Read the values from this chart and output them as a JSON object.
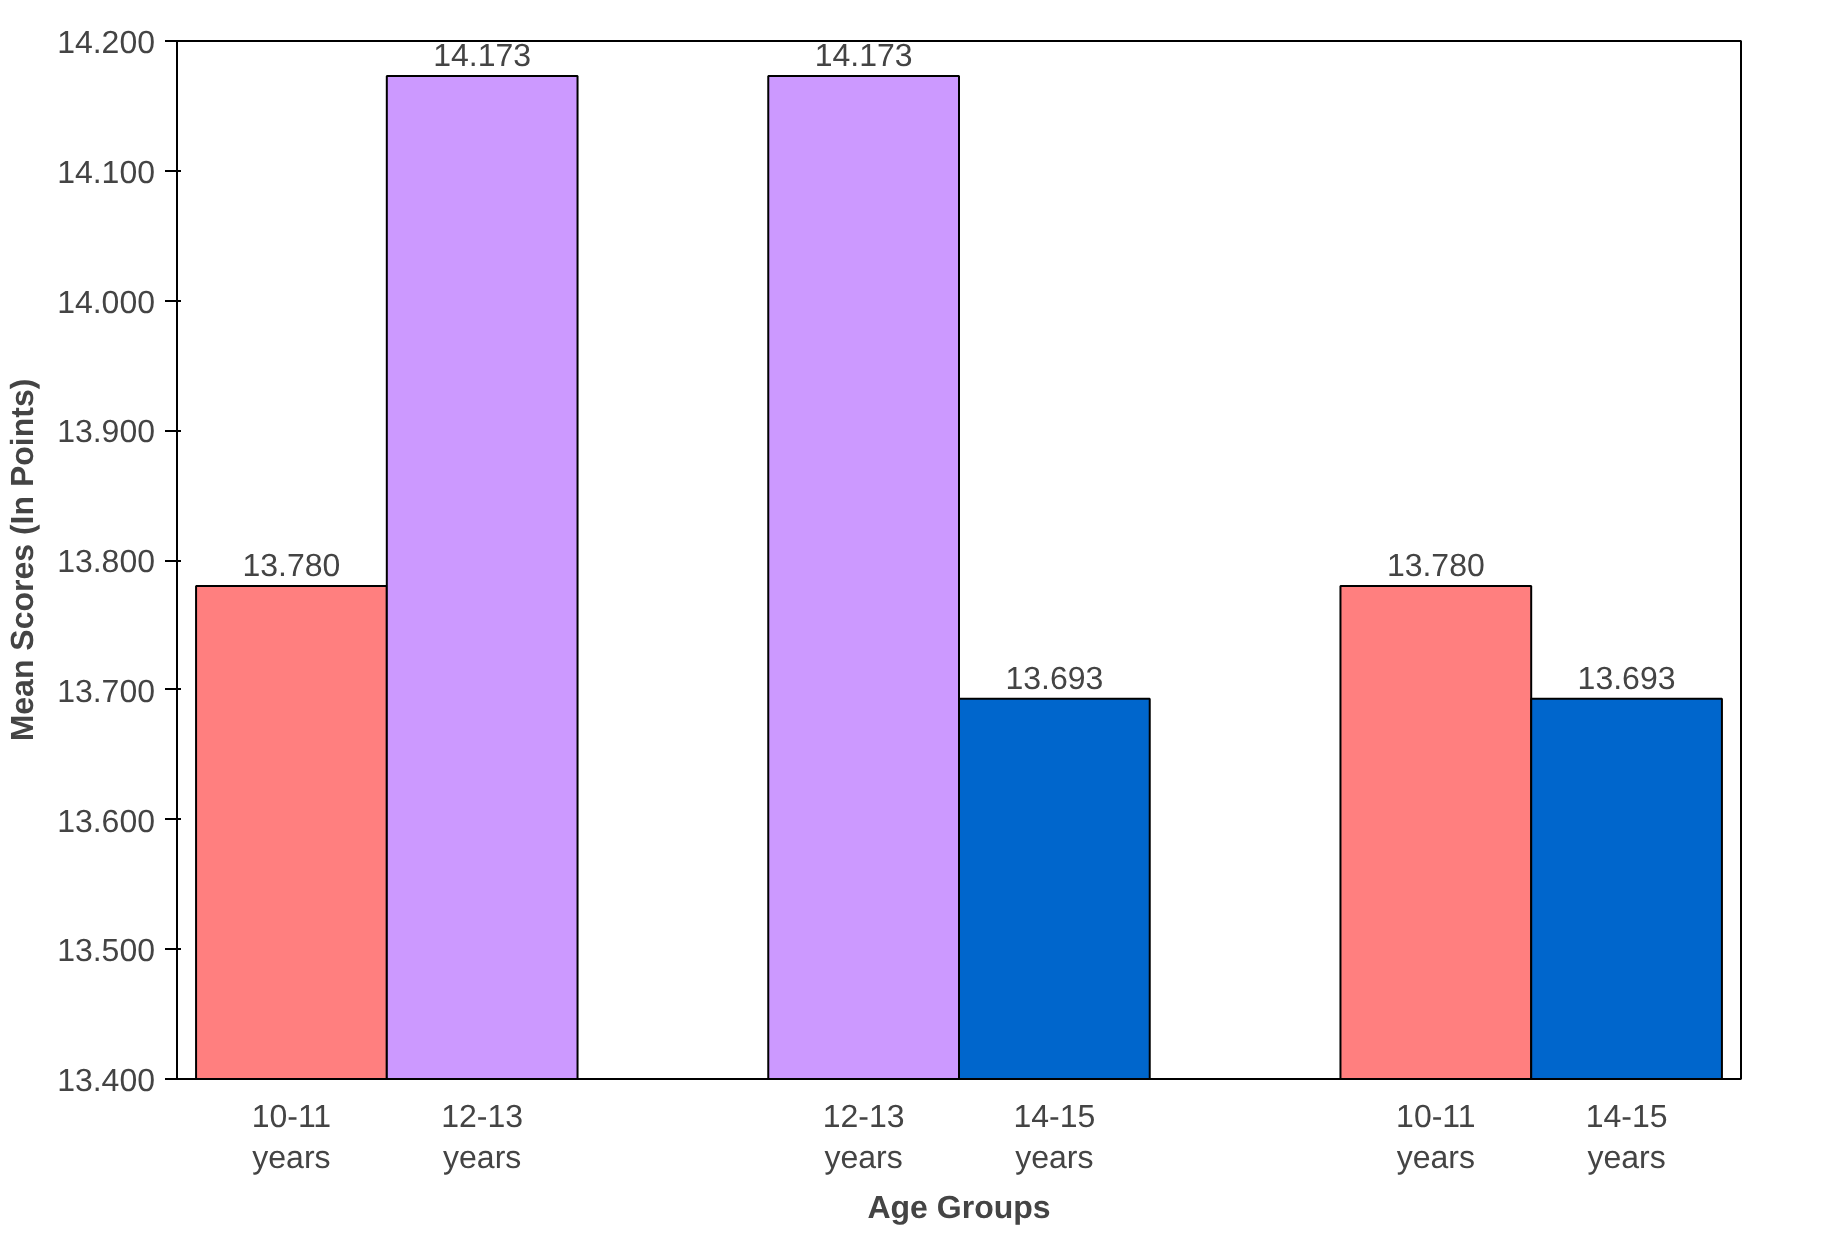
{
  "chart_data": {
    "type": "bar",
    "xlabel": "Age Groups",
    "ylabel": "Mean Scores (In Points)",
    "categories": [
      "10-11\nyears",
      "12-13\nyears",
      null,
      "12-13\nyears",
      "14-15\nyears",
      null,
      "10-11\nyears",
      "14-15\nyears"
    ],
    "values": [
      13.78,
      14.173,
      null,
      14.173,
      13.693,
      null,
      13.78,
      13.693
    ],
    "colors": [
      "#ff7f7f",
      "#cc99ff",
      "#ffffff",
      "#cc99ff",
      "#0066cc",
      "#ffffff",
      "#ff7f7f",
      "#0066cc"
    ],
    "value_labels": [
      "13.780",
      "14.173",
      null,
      "14.173",
      "13.693",
      null,
      "13.780",
      "13.693"
    ],
    "ylim": [
      13.4,
      14.2
    ],
    "yticks": [
      {
        "value": 13.4,
        "label": "13.400"
      },
      {
        "value": 13.5,
        "label": "13.500"
      },
      {
        "value": 13.6,
        "label": "13.600"
      },
      {
        "value": 13.7,
        "label": "13.700"
      },
      {
        "value": 13.8,
        "label": "13.800"
      },
      {
        "value": 13.9,
        "label": "13.900"
      },
      {
        "value": 14.0,
        "label": "14.000"
      },
      {
        "value": 14.1,
        "label": "14.100"
      },
      {
        "value": 14.2,
        "label": "14.200"
      }
    ],
    "grid": false
  }
}
